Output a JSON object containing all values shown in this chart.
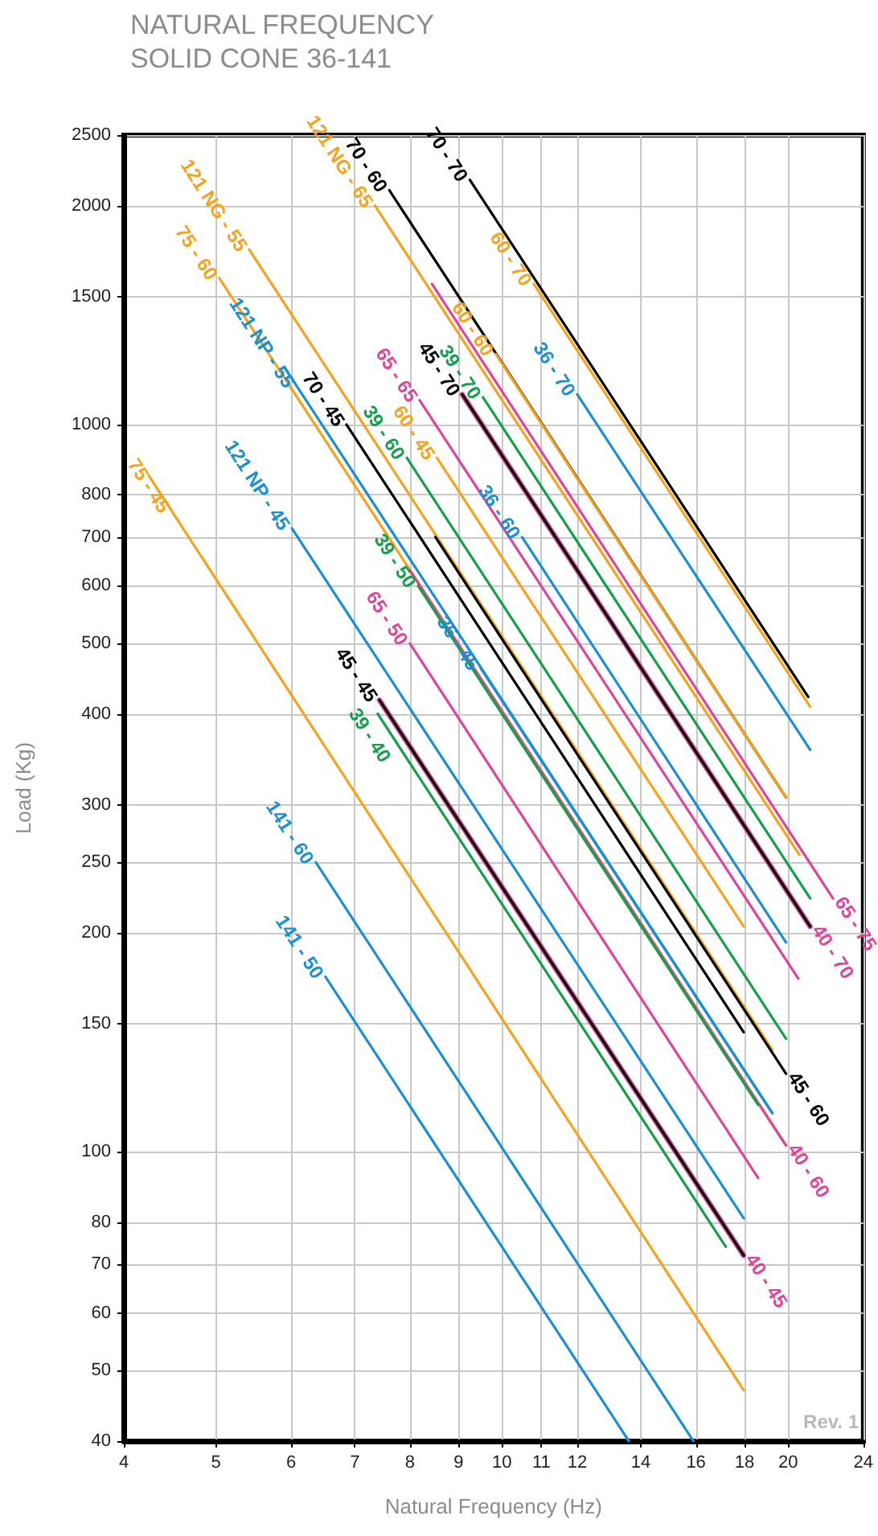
{
  "chart_data": {
    "type": "line",
    "title": "NATURAL FREQUENCY",
    "subtitle": "SOLID CONE 36-141",
    "xlabel": "Natural Frequency (Hz)",
    "ylabel": "Load (Kg)",
    "log": "xy",
    "grid": true,
    "legend": false,
    "marker": "none",
    "line_style": "solid",
    "xlim": [
      4,
      24
    ],
    "xticks": [
      4,
      5,
      6,
      7,
      8,
      9,
      10,
      11,
      12,
      14,
      16,
      18,
      20,
      24
    ],
    "ylim": [
      40,
      2500
    ],
    "yticks": [
      40,
      50,
      60,
      70,
      80,
      100,
      150,
      200,
      250,
      300,
      400,
      500,
      600,
      700,
      800,
      1000,
      1500,
      2000,
      2500
    ],
    "annotations": [
      "Rev. 1"
    ],
    "series": [
      {
        "name": "70 - 70",
        "color": "#000000",
        "x": [
          9.25,
          21.0
        ],
        "values": [
          2170,
          422
        ]
      },
      {
        "name": "70 - 60",
        "color": "#000000",
        "x": [
          7.61,
          19.9
        ],
        "values": [
          2100,
          307
        ]
      },
      {
        "name": "60 - 60",
        "color": "#f7a21b",
        "x": [
          9.85,
          19.9
        ],
        "values": [
          1250,
          307
        ]
      },
      {
        "name": "121 NG - 65",
        "color": "#f7a21b",
        "x": [
          7.35,
          20.55
        ],
        "values": [
          2000,
          256
        ]
      },
      {
        "name": "65 - 75",
        "color": "#e0449a",
        "x": [
          8.44,
          22.3
        ],
        "values": [
          1560,
          223
        ]
      },
      {
        "name": "60 - 70",
        "color": "#f7a21b",
        "x": [
          10.8,
          21.1
        ],
        "values": [
          1560,
          409
        ]
      },
      {
        "name": "36 - 70",
        "color": "#1a8fd6",
        "x": [
          12.0,
          21.1
        ],
        "values": [
          1100,
          357
        ]
      },
      {
        "name": "39 - 70",
        "color": "#14a04a",
        "x": [
          9.55,
          21.1
        ],
        "values": [
          1090,
          223
        ]
      },
      {
        "name": "40 - 70",
        "color": "#e0449a",
        "x": [
          9.08,
          21.1
        ],
        "values": [
          1100,
          204
        ]
      },
      {
        "name": "45 - 70",
        "color": "#000000",
        "x": [
          9.08,
          21.1
        ],
        "values": [
          1100,
          204
        ]
      },
      {
        "name": "65 - 65",
        "color": "#e0449a",
        "x": [
          8.19,
          20.5
        ],
        "values": [
          1080,
          173
        ]
      },
      {
        "name": "60 - 45",
        "color": "#f7a21b",
        "x": [
          8.54,
          17.96
        ],
        "values": [
          900,
          204
        ]
      },
      {
        "name": "39 - 60",
        "color": "#14a04a",
        "x": [
          7.94,
          19.9
        ],
        "values": [
          900,
          143
        ]
      },
      {
        "name": "36 - 60",
        "color": "#1a8fd6",
        "x": [
          10.5,
          19.9
        ],
        "values": [
          700,
          194
        ]
      },
      {
        "name": "121 NG - 55",
        "color": "#f7a21b",
        "x": [
          5.42,
          19.25
        ],
        "values": [
          1740,
          138
        ]
      },
      {
        "name": "45 - 60",
        "color": "#000000",
        "x": [
          8.51,
          19.9
        ],
        "values": [
          700,
          128
        ]
      },
      {
        "name": "75 - 60",
        "color": "#f7a21b",
        "x": [
          5.04,
          19.9
        ],
        "values": [
          1590,
          102
        ]
      },
      {
        "name": "40 - 60",
        "color": "#e0449a",
        "x": [
          8.0,
          19.9
        ],
        "values": [
          630,
          102
        ]
      },
      {
        "name": "39 - 50",
        "color": "#14a04a",
        "x": [
          8.16,
          18.6
        ],
        "values": [
          600,
          116
        ]
      },
      {
        "name": "121 NP - 55",
        "color": "#1a8fd6",
        "x": [
          5.9,
          19.25
        ],
        "values": [
          1200,
          113
        ]
      },
      {
        "name": "36 - 45",
        "color": "#1a8fd6",
        "x": [
          9.5,
          19.25
        ],
        "values": [
          462,
          113
        ]
      },
      {
        "name": "70 - 45",
        "color": "#000000",
        "x": [
          6.86,
          17.96
        ],
        "values": [
          1000,
          146
        ]
      },
      {
        "name": "65 - 50",
        "color": "#e0449a",
        "x": [
          8.0,
          18.6
        ],
        "values": [
          500,
          92
        ]
      },
      {
        "name": "121 NP - 45",
        "color": "#1a8fd6",
        "x": [
          6.01,
          17.96
        ],
        "values": [
          720,
          81
        ]
      },
      {
        "name": "40 - 45",
        "color": "#e0449a",
        "x": [
          7.43,
          17.96
        ],
        "values": [
          418,
          72
        ]
      },
      {
        "name": "45 - 45",
        "color": "#000000",
        "x": [
          7.43,
          17.96
        ],
        "values": [
          418,
          72
        ]
      },
      {
        "name": "39 - 40",
        "color": "#14a04a",
        "x": [
          7.4,
          17.2
        ],
        "values": [
          400,
          74
        ]
      },
      {
        "name": "75 - 45",
        "color": "#f7a21b",
        "x": [
          4.25,
          17.96
        ],
        "values": [
          850,
          47
        ]
      },
      {
        "name": "141 - 60",
        "color": "#1a8fd6",
        "x": [
          6.37,
          15.9
        ],
        "values": [
          250,
          40
        ]
      },
      {
        "name": "141 - 50",
        "color": "#1a8fd6",
        "x": [
          6.52,
          13.6
        ],
        "values": [
          174,
          40
        ]
      }
    ]
  }
}
